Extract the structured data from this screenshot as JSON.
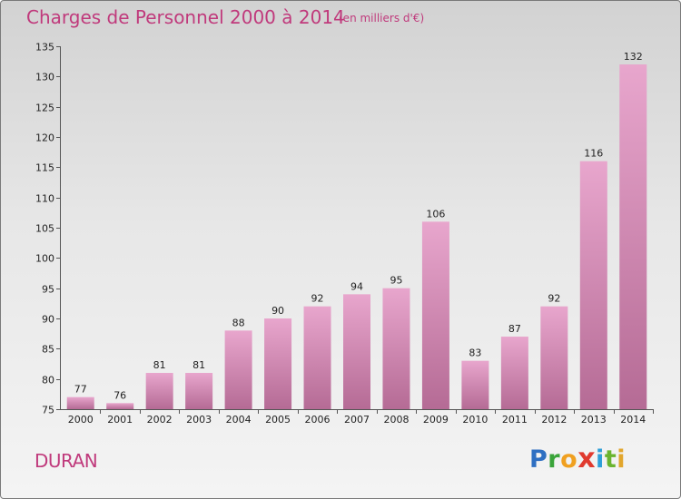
{
  "header": {
    "title": "Charges de Personnel 2000 à 2014",
    "subtitle": "(en milliers d'€)"
  },
  "footer": {
    "commune": "DURAN",
    "logo_letters": [
      "P",
      "r",
      "o",
      "x",
      "i",
      "t",
      "i"
    ]
  },
  "colors": {
    "title": "#c03a7c",
    "bar_top": "#e8a6cd",
    "bar_bottom": "#b56b95",
    "axis": "#555555"
  },
  "chart_data": {
    "type": "bar",
    "title": "Charges de Personnel 2000 à 2014",
    "subtitle": "(en milliers d'€)",
    "categories": [
      "2000",
      "2001",
      "2002",
      "2003",
      "2004",
      "2005",
      "2006",
      "2007",
      "2008",
      "2009",
      "2010",
      "2011",
      "2012",
      "2013",
      "2014"
    ],
    "values": [
      77,
      76,
      81,
      81,
      88,
      90,
      92,
      94,
      95,
      106,
      83,
      87,
      92,
      116,
      132
    ],
    "ylim": [
      75,
      135
    ],
    "yticks": [
      75,
      80,
      85,
      90,
      95,
      100,
      105,
      110,
      115,
      120,
      125,
      130,
      135
    ],
    "xlabel": "",
    "ylabel": "",
    "grid": false,
    "data_labels": true
  }
}
